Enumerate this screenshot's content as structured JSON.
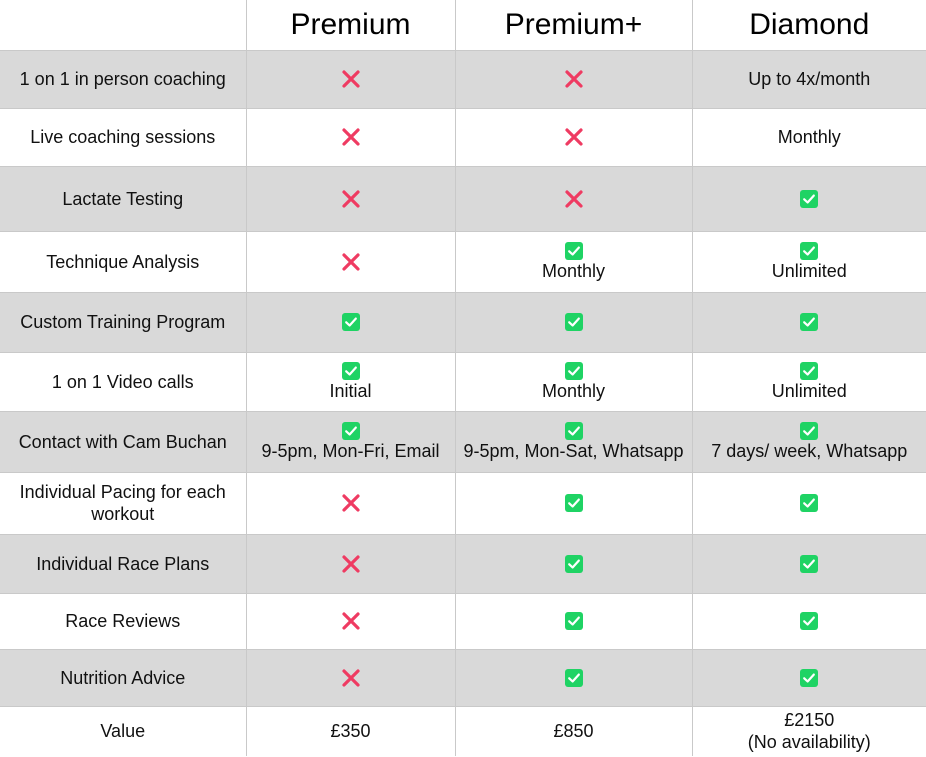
{
  "plans": [
    "Premium",
    "Premium+",
    "Diamond"
  ],
  "rows": [
    {
      "feature": "1 on 1 in person coaching",
      "cells": [
        {
          "icon": "cross-icon"
        },
        {
          "icon": "cross-icon"
        },
        {
          "text": "Up to 4x/month"
        }
      ]
    },
    {
      "feature": "Live coaching sessions",
      "cells": [
        {
          "icon": "cross-icon"
        },
        {
          "icon": "cross-icon"
        },
        {
          "text": "Monthly"
        }
      ]
    },
    {
      "feature": "Lactate Testing",
      "cells": [
        {
          "icon": "cross-icon"
        },
        {
          "icon": "cross-icon"
        },
        {
          "icon": "check-icon"
        }
      ]
    },
    {
      "feature": "Technique Analysis",
      "cells": [
        {
          "icon": "cross-icon"
        },
        {
          "icon": "check-icon",
          "text": "Monthly"
        },
        {
          "icon": "check-icon",
          "text": "Unlimited"
        }
      ]
    },
    {
      "feature": "Custom Training Program",
      "cells": [
        {
          "icon": "check-icon"
        },
        {
          "icon": "check-icon"
        },
        {
          "icon": "check-icon"
        }
      ]
    },
    {
      "feature": "1 on 1 Video calls",
      "cells": [
        {
          "icon": "check-icon",
          "text": "Initial"
        },
        {
          "icon": "check-icon",
          "text": "Monthly"
        },
        {
          "icon": "check-icon",
          "text": "Unlimited"
        }
      ]
    },
    {
      "feature": "Contact with Cam Buchan",
      "cells": [
        {
          "icon": "check-icon",
          "text": "9-5pm, Mon-Fri, Email"
        },
        {
          "icon": "check-icon",
          "text": "9-5pm, Mon-Sat, Whatsapp"
        },
        {
          "icon": "check-icon",
          "text": "7 days/ week, Whatsapp"
        }
      ]
    },
    {
      "feature": "Individual Pacing for each workout",
      "cells": [
        {
          "icon": "cross-icon"
        },
        {
          "icon": "check-icon"
        },
        {
          "icon": "check-icon"
        }
      ]
    },
    {
      "feature": "Individual Race Plans",
      "cells": [
        {
          "icon": "cross-icon"
        },
        {
          "icon": "check-icon"
        },
        {
          "icon": "check-icon"
        }
      ]
    },
    {
      "feature": "Race Reviews",
      "cells": [
        {
          "icon": "cross-icon"
        },
        {
          "icon": "check-icon"
        },
        {
          "icon": "check-icon"
        }
      ]
    },
    {
      "feature": "Nutrition Advice",
      "cells": [
        {
          "icon": "cross-icon"
        },
        {
          "icon": "check-icon"
        },
        {
          "icon": "check-icon"
        }
      ]
    },
    {
      "feature": "Value",
      "cells": [
        {
          "text": "£350"
        },
        {
          "text": "£850"
        },
        {
          "text": "£2150",
          "note": "(No availability)"
        }
      ]
    }
  ],
  "colors": {
    "cross": "#ef3b62",
    "check": "#1fd364",
    "row_shade": "#d9d9d9",
    "grid": "#c9c9c9"
  }
}
